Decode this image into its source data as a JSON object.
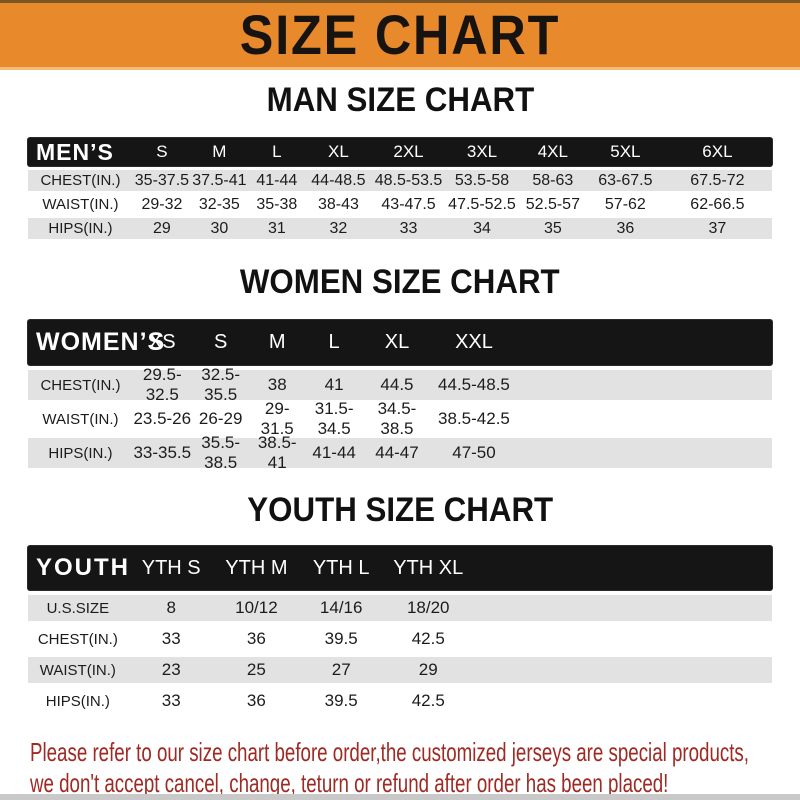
{
  "banner": {
    "title": "SIZE CHART"
  },
  "men": {
    "heading": "MAN SIZE CHART",
    "label": "MEN’S",
    "columns": [
      "S",
      "M",
      "L",
      "XL",
      "2XL",
      "3XL",
      "4XL",
      "5XL",
      "6XL"
    ],
    "rows": [
      {
        "label": "CHEST(IN.)",
        "values": [
          "35-37.5",
          "37.5-41",
          "41-44",
          "44-48.5",
          "48.5-53.5",
          "53.5-58",
          "58-63",
          "63-67.5",
          "67.5-72"
        ]
      },
      {
        "label": "WAIST(IN.)",
        "values": [
          "29-32",
          "32-35",
          "35-38",
          "38-43",
          "43-47.5",
          "47.5-52.5",
          "52.5-57",
          "57-62",
          "62-66.5"
        ]
      },
      {
        "label": "HIPS(IN.)",
        "values": [
          "29",
          "30",
          "31",
          "32",
          "33",
          "34",
          "35",
          "36",
          "37"
        ]
      }
    ]
  },
  "women": {
    "heading": "WOMEN SIZE CHART",
    "label": "WOMEN’S",
    "columns": [
      "XS",
      "S",
      "M",
      "L",
      "XL",
      "XXL"
    ],
    "rows": [
      {
        "label": "CHEST(IN.)",
        "values": [
          "29.5-32.5",
          "32.5-35.5",
          "38",
          "41",
          "44.5",
          "44.5-48.5"
        ]
      },
      {
        "label": "WAIST(IN.)",
        "values": [
          "23.5-26",
          "26-29",
          "29-31.5",
          "31.5-34.5",
          "34.5-38.5",
          "38.5-42.5"
        ]
      },
      {
        "label": "HIPS(IN.)",
        "values": [
          "33-35.5",
          "35.5-38.5",
          "38.5-41",
          "41-44",
          "44-47",
          "47-50"
        ]
      }
    ]
  },
  "youth": {
    "heading": "YOUTH SIZE CHART",
    "label": "YOUTH",
    "columns": [
      "YTH S",
      "YTH M",
      "YTH L",
      "YTH XL"
    ],
    "rows": [
      {
        "label": "U.S.SIZE",
        "values": [
          "8",
          "10/12",
          "14/16",
          "18/20"
        ]
      },
      {
        "label": "CHEST(IN.)",
        "values": [
          "33",
          "36",
          "39.5",
          "42.5"
        ]
      },
      {
        "label": "WAIST(IN.)",
        "values": [
          "23",
          "25",
          "27",
          "29"
        ]
      },
      {
        "label": "HIPS(IN.)",
        "values": [
          "33",
          "36",
          "39.5",
          "42.5"
        ]
      }
    ]
  },
  "footer": {
    "line1": "Please refer to our size chart before order,the customized jerseys are special products,",
    "line2": "we don't accept cancel, change, teturn or refund after order has been placed!"
  },
  "colors": {
    "banner_bg": "#E8892B",
    "table_header_bg": "#151515",
    "row_stripe_bg": "#E2E2E2",
    "disclaimer_red": "#9E2A24"
  }
}
